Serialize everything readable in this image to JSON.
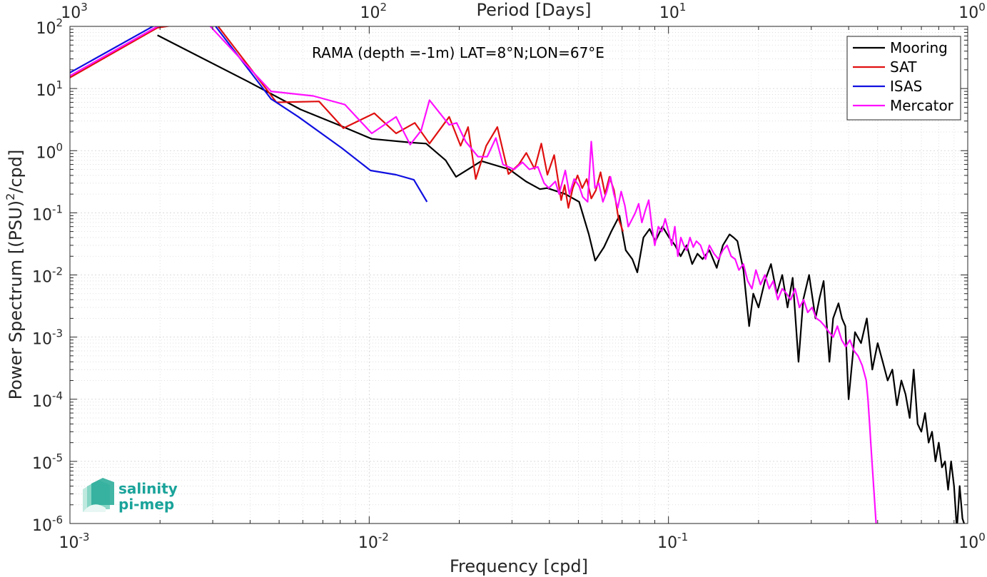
{
  "chart_data": {
    "type": "line",
    "title": "RAMA (depth =-1m) LAT=8°N;LON=67°E",
    "xlabel": "Frequency [cpd]",
    "ylabel": "Power Spectrum [(PSU)²/cpd]",
    "ylabel_parts": {
      "before": "Power Spectrum [(PSU)",
      "sup": "2",
      "after": "/cpd]"
    },
    "top_xlabel": "Period [Days]",
    "x_scale": "log",
    "y_scale": "log",
    "xlim": [
      0.001,
      1
    ],
    "ylim": [
      1e-06,
      100
    ],
    "grid": true,
    "legend_position": "top-right",
    "x_ticks": [
      {
        "value": 0.001,
        "base": "10",
        "exp": "-3"
      },
      {
        "value": 0.01,
        "base": "10",
        "exp": "-2"
      },
      {
        "value": 0.1,
        "base": "10",
        "exp": "-1"
      },
      {
        "value": 1,
        "base": "10",
        "exp": "0"
      }
    ],
    "top_ticks": [
      {
        "value": 0.001,
        "base": "10",
        "exp": "3"
      },
      {
        "value": 0.01,
        "base": "10",
        "exp": "2"
      },
      {
        "value": 0.1,
        "base": "10",
        "exp": "1"
      },
      {
        "value": 1,
        "base": "10",
        "exp": "0"
      }
    ],
    "y_ticks": [
      {
        "value": 1e-06,
        "base": "10",
        "exp": "-6"
      },
      {
        "value": 1e-05,
        "base": "10",
        "exp": "-5"
      },
      {
        "value": 0.0001,
        "base": "10",
        "exp": "-4"
      },
      {
        "value": 0.001,
        "base": "10",
        "exp": "-3"
      },
      {
        "value": 0.01,
        "base": "10",
        "exp": "-2"
      },
      {
        "value": 0.1,
        "base": "10",
        "exp": "-1"
      },
      {
        "value": 1,
        "base": "10",
        "exp": "0"
      },
      {
        "value": 10,
        "base": "10",
        "exp": "1"
      },
      {
        "value": 100,
        "base": "10",
        "exp": "2"
      }
    ],
    "series": [
      {
        "name": "Mooring",
        "color": "#000000",
        "points": [
          [
            0.00196,
            72
          ],
          [
            0.00393,
            13
          ],
          [
            0.0059,
            4.6
          ],
          [
            0.0079,
            2.6
          ],
          [
            0.0102,
            1.55
          ],
          [
            0.0138,
            1.35
          ],
          [
            0.0155,
            1.3
          ],
          [
            0.018,
            0.7
          ],
          [
            0.0195,
            0.38
          ],
          [
            0.0237,
            0.68
          ],
          [
            0.0294,
            0.5
          ],
          [
            0.0334,
            0.32
          ],
          [
            0.0372,
            0.24
          ],
          [
            0.0393,
            0.25
          ],
          [
            0.0452,
            0.2
          ],
          [
            0.0503,
            0.15
          ],
          [
            0.0542,
            0.045
          ],
          [
            0.0569,
            0.017
          ],
          [
            0.0609,
            0.028
          ],
          [
            0.0644,
            0.05
          ],
          [
            0.0686,
            0.09
          ],
          [
            0.072,
            0.025
          ],
          [
            0.0757,
            0.018
          ],
          [
            0.0787,
            0.011
          ],
          [
            0.0825,
            0.04
          ],
          [
            0.0865,
            0.055
          ],
          [
            0.0904,
            0.035
          ],
          [
            0.0955,
            0.06
          ],
          [
            0.1005,
            0.04
          ],
          [
            0.1052,
            0.03
          ],
          [
            0.1098,
            0.02
          ],
          [
            0.115,
            0.03
          ],
          [
            0.12,
            0.015
          ],
          [
            0.125,
            0.022
          ],
          [
            0.13,
            0.018
          ],
          [
            0.137,
            0.025
          ],
          [
            0.145,
            0.013
          ],
          [
            0.152,
            0.03
          ],
          [
            0.16,
            0.045
          ],
          [
            0.165,
            0.04
          ],
          [
            0.17,
            0.035
          ],
          [
            0.178,
            0.012
          ],
          [
            0.186,
            0.0015
          ],
          [
            0.192,
            0.005
          ],
          [
            0.2,
            0.003
          ],
          [
            0.21,
            0.008
          ],
          [
            0.22,
            0.015
          ],
          [
            0.23,
            0.005
          ],
          [
            0.24,
            0.01
          ],
          [
            0.25,
            0.003
          ],
          [
            0.26,
            0.009
          ],
          [
            0.272,
            0.0004
          ],
          [
            0.282,
            0.004
          ],
          [
            0.295,
            0.01
          ],
          [
            0.31,
            0.002
          ],
          [
            0.32,
            0.0043
          ],
          [
            0.33,
            0.008
          ],
          [
            0.345,
            0.0004
          ],
          [
            0.355,
            0.002
          ],
          [
            0.37,
            0.0035
          ],
          [
            0.38,
            0.002
          ],
          [
            0.39,
            0.0015
          ],
          [
            0.4,
            0.0001
          ],
          [
            0.42,
            0.0012
          ],
          [
            0.44,
            0.0008
          ],
          [
            0.46,
            0.002
          ],
          [
            0.48,
            0.0003
          ],
          [
            0.5,
            0.0008
          ],
          [
            0.52,
            0.0004
          ],
          [
            0.54,
            0.0002
          ],
          [
            0.56,
            0.0003
          ],
          [
            0.58,
            8e-05
          ],
          [
            0.6,
            0.0002
          ],
          [
            0.62,
            0.00012
          ],
          [
            0.64,
            5e-05
          ],
          [
            0.66,
            0.0003
          ],
          [
            0.68,
            4e-05
          ],
          [
            0.7,
            3e-05
          ],
          [
            0.72,
            6e-05
          ],
          [
            0.74,
            2e-05
          ],
          [
            0.76,
            3e-05
          ],
          [
            0.78,
            1e-05
          ],
          [
            0.8,
            2e-05
          ],
          [
            0.82,
            8e-06
          ],
          [
            0.84,
            1e-05
          ],
          [
            0.86,
            3.5e-06
          ],
          [
            0.88,
            1e-05
          ],
          [
            0.9,
            4e-06
          ],
          [
            0.92,
            8e-07
          ],
          [
            0.94,
            4e-06
          ],
          [
            0.96,
            1.2e-06
          ],
          [
            0.98,
            9e-07
          ]
        ]
      },
      {
        "name": "SAT",
        "color": "#e01010",
        "points": [
          [
            0.001,
            15
          ],
          [
            0.00196,
            95
          ],
          [
            0.003,
            130
          ],
          [
            0.0049,
            6
          ],
          [
            0.0068,
            6.2
          ],
          [
            0.0082,
            2.3
          ],
          [
            0.0104,
            4
          ],
          [
            0.0123,
            1.9
          ],
          [
            0.0142,
            2.8
          ],
          [
            0.0159,
            1.3
          ],
          [
            0.0185,
            3.5
          ],
          [
            0.0202,
            1.2
          ],
          [
            0.0214,
            2.4
          ],
          [
            0.0227,
            0.35
          ],
          [
            0.0246,
            1.2
          ],
          [
            0.0268,
            2.4
          ],
          [
            0.0292,
            0.42
          ],
          [
            0.0316,
            0.6
          ],
          [
            0.0335,
            0.92
          ],
          [
            0.0357,
            0.51
          ],
          [
            0.0376,
            1.3
          ],
          [
            0.0394,
            0.41
          ],
          [
            0.0415,
            0.85
          ],
          [
            0.0438,
            0.16
          ],
          [
            0.045,
            0.28
          ],
          [
            0.0463,
            0.12
          ],
          [
            0.0479,
            0.25
          ],
          [
            0.0497,
            0.4
          ],
          [
            0.0515,
            0.25
          ],
          [
            0.0533,
            0.35
          ],
          [
            0.0552,
            0.17
          ],
          [
            0.0572,
            0.23
          ],
          [
            0.0593,
            0.45
          ],
          [
            0.0614,
            0.2
          ],
          [
            0.0635,
            0.38
          ],
          [
            0.0658,
            0.23
          ],
          [
            0.0681,
            0.08
          ],
          [
            0.0705,
            0.05
          ]
        ]
      },
      {
        "name": "ISAS",
        "color": "#1010e0",
        "points": [
          [
            0.001,
            18
          ],
          [
            0.00196,
            110
          ],
          [
            0.003,
            115
          ],
          [
            0.0047,
            6.8
          ],
          [
            0.0058,
            3.5
          ],
          [
            0.0081,
            1.1
          ],
          [
            0.0101,
            0.48
          ],
          [
            0.0123,
            0.41
          ],
          [
            0.0141,
            0.34
          ],
          [
            0.0156,
            0.15
          ]
        ]
      },
      {
        "name": "Mercator",
        "color": "#ff10ff",
        "points": [
          [
            0.001,
            16
          ],
          [
            0.00196,
            100
          ],
          [
            0.0028,
            130
          ],
          [
            0.0047,
            9
          ],
          [
            0.0065,
            7.6
          ],
          [
            0.0083,
            5.5
          ],
          [
            0.0102,
            1.9
          ],
          [
            0.0123,
            3.5
          ],
          [
            0.0137,
            1.25
          ],
          [
            0.0149,
            2.1
          ],
          [
            0.0159,
            6.5
          ],
          [
            0.0185,
            2.6
          ],
          [
            0.0196,
            2.8
          ],
          [
            0.021,
            1.4
          ],
          [
            0.0231,
            0.8
          ],
          [
            0.0248,
            0.8
          ],
          [
            0.0265,
            1.6
          ],
          [
            0.028,
            0.6
          ],
          [
            0.0305,
            0.5
          ],
          [
            0.0325,
            0.65
          ],
          [
            0.0343,
            0.5
          ],
          [
            0.0366,
            0.55
          ],
          [
            0.0384,
            0.3
          ],
          [
            0.0398,
            0.25
          ],
          [
            0.0419,
            0.32
          ],
          [
            0.0431,
            0.2
          ],
          [
            0.0452,
            0.48
          ],
          [
            0.0467,
            0.2
          ],
          [
            0.0484,
            0.35
          ],
          [
            0.0503,
            0.27
          ],
          [
            0.0517,
            0.18
          ],
          [
            0.0537,
            0.15
          ],
          [
            0.0552,
            1.4
          ],
          [
            0.0568,
            0.25
          ],
          [
            0.0585,
            0.3
          ],
          [
            0.0604,
            0.15
          ],
          [
            0.0622,
            0.22
          ],
          [
            0.064,
            0.38
          ],
          [
            0.0657,
            0.2
          ],
          [
            0.0677,
            0.12
          ],
          [
            0.0695,
            0.22
          ],
          [
            0.0715,
            0.13
          ],
          [
            0.0734,
            0.06
          ],
          [
            0.0757,
            0.08
          ],
          [
            0.0775,
            0.1
          ],
          [
            0.0795,
            0.14
          ],
          [
            0.0815,
            0.07
          ],
          [
            0.0837,
            0.11
          ],
          [
            0.0859,
            0.16
          ],
          [
            0.088,
            0.06
          ],
          [
            0.09,
            0.03
          ],
          [
            0.0925,
            0.06
          ],
          [
            0.095,
            0.05
          ],
          [
            0.0975,
            0.08
          ],
          [
            0.1,
            0.05
          ],
          [
            0.1025,
            0.03
          ],
          [
            0.105,
            0.06
          ],
          [
            0.1075,
            0.02
          ],
          [
            0.11,
            0.04
          ],
          [
            0.1125,
            0.03
          ],
          [
            0.115,
            0.025
          ],
          [
            0.118,
            0.04
          ],
          [
            0.121,
            0.028
          ],
          [
            0.124,
            0.035
          ],
          [
            0.128,
            0.03
          ],
          [
            0.133,
            0.018
          ],
          [
            0.137,
            0.03
          ],
          [
            0.142,
            0.022
          ],
          [
            0.147,
            0.018
          ],
          [
            0.152,
            0.025
          ],
          [
            0.157,
            0.03
          ],
          [
            0.162,
            0.02
          ],
          [
            0.167,
            0.018
          ],
          [
            0.172,
            0.012
          ],
          [
            0.178,
            0.015
          ],
          [
            0.184,
            0.008
          ],
          [
            0.19,
            0.006
          ],
          [
            0.196,
            0.012
          ],
          [
            0.203,
            0.007
          ],
          [
            0.21,
            0.01
          ],
          [
            0.217,
            0.006
          ],
          [
            0.224,
            0.008
          ],
          [
            0.232,
            0.004
          ],
          [
            0.24,
            0.006
          ],
          [
            0.248,
            0.005
          ],
          [
            0.256,
            0.004
          ],
          [
            0.265,
            0.006
          ],
          [
            0.274,
            0.003
          ],
          [
            0.283,
            0.004
          ],
          [
            0.292,
            0.0025
          ],
          [
            0.302,
            0.003
          ],
          [
            0.312,
            0.002
          ],
          [
            0.322,
            0.0018
          ],
          [
            0.333,
            0.0015
          ],
          [
            0.344,
            0.0012
          ],
          [
            0.355,
            0.001
          ],
          [
            0.367,
            0.0015
          ],
          [
            0.379,
            0.0009
          ],
          [
            0.391,
            0.0007
          ],
          [
            0.404,
            0.0009
          ],
          [
            0.417,
            0.0006
          ],
          [
            0.43,
            0.0005
          ],
          [
            0.444,
            0.00035
          ],
          [
            0.458,
            0.0002
          ],
          [
            0.464,
            0.0001
          ],
          [
            0.47,
            4e-05
          ],
          [
            0.476,
            1.5e-05
          ],
          [
            0.482,
            6e-06
          ],
          [
            0.488,
            2.5e-06
          ],
          [
            0.494,
            1e-06
          ]
        ]
      }
    ]
  },
  "logo": {
    "line1": "salinity",
    "line2": "pi-mep"
  }
}
